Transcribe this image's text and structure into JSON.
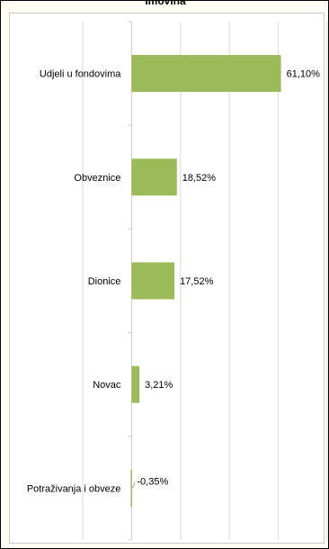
{
  "chart_data": {
    "type": "bar",
    "orientation": "horizontal",
    "title": "Imovina",
    "categories": [
      "Udjeli u fondovima",
      "Obveznice",
      "Dionice",
      "Novac",
      "Potraživanja i obveze"
    ],
    "values": [
      61.1,
      18.52,
      17.52,
      3.21,
      -0.35
    ],
    "data_labels": [
      "61,10%",
      "18,52%",
      "17,52%",
      "3,21%",
      "-0,35%"
    ],
    "xlim": [
      -20,
      80
    ],
    "grid": true,
    "legend": "none",
    "bar_color": "#9bbb59"
  }
}
